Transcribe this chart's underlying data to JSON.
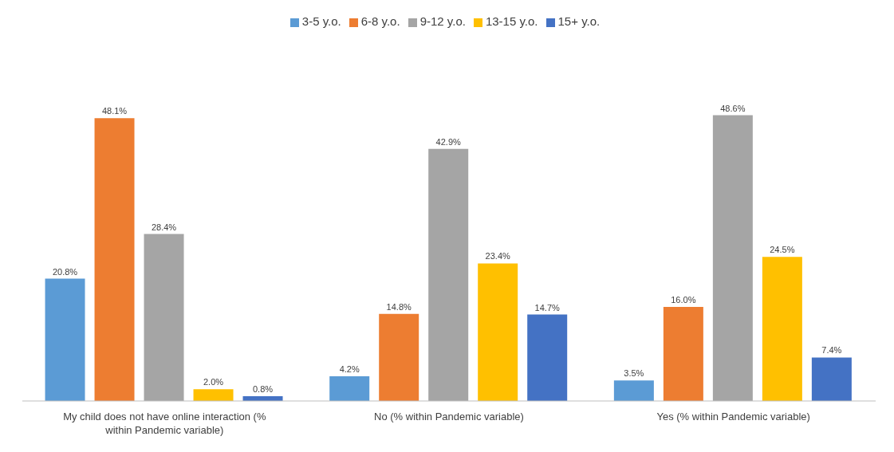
{
  "chart_data": {
    "type": "bar",
    "categories": [
      "My child does not have online interaction (% within Pandemic variable)",
      "No (% within Pandemic variable)",
      "Yes (% within Pandemic variable)"
    ],
    "series": [
      {
        "name": "3-5 y.o.",
        "color": "#5b9bd5",
        "values": [
          20.8,
          4.2,
          3.5
        ],
        "value_labels": [
          "20.8%",
          "4.2%",
          "3.5%"
        ]
      },
      {
        "name": "6-8 y.o.",
        "color": "#ed7d31",
        "values": [
          48.1,
          14.8,
          16.0
        ],
        "value_labels": [
          "48.1%",
          "14.8%",
          "16.0%"
        ]
      },
      {
        "name": "9-12 y.o.",
        "color": "#a5a5a5",
        "values": [
          28.4,
          42.9,
          48.6
        ],
        "value_labels": [
          "28.4%",
          "42.9%",
          "48.6%"
        ]
      },
      {
        "name": "13-15 y.o.",
        "color": "#ffc000",
        "values": [
          2.0,
          23.4,
          24.5
        ],
        "value_labels": [
          "2.0%",
          "23.4%",
          "24.5%"
        ]
      },
      {
        "name": "15+ y.o.",
        "color": "#4472c4",
        "values": [
          0.8,
          14.7,
          7.4
        ],
        "value_labels": [
          "0.8%",
          "14.7%",
          "7.4%"
        ]
      }
    ],
    "legend": "top",
    "grid": false
  }
}
